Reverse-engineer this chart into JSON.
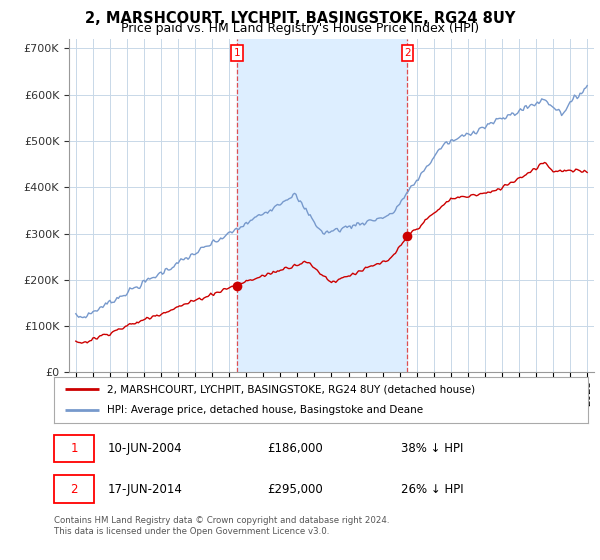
{
  "title": "2, MARSHCOURT, LYCHPIT, BASINGSTOKE, RG24 8UY",
  "subtitle": "Price paid vs. HM Land Registry's House Price Index (HPI)",
  "title_fontsize": 10.5,
  "subtitle_fontsize": 9,
  "background_color": "#ffffff",
  "plot_bg_color": "#ffffff",
  "grid_color": "#c8d8e8",
  "shade_color": "#ddeeff",
  "transaction1": {
    "date": "10-JUN-2004",
    "price": 186000,
    "pct": "38% ↓ HPI",
    "label": "1",
    "year": 2004.458
  },
  "transaction2": {
    "date": "17-JUN-2014",
    "price": 295000,
    "pct": "26% ↓ HPI",
    "label": "2",
    "year": 2014.458
  },
  "legend_label_red": "2, MARSHCOURT, LYCHPIT, BASINGSTOKE, RG24 8UY (detached house)",
  "legend_label_blue": "HPI: Average price, detached house, Basingstoke and Deane",
  "footnote": "Contains HM Land Registry data © Crown copyright and database right 2024.\nThis data is licensed under the Open Government Licence v3.0.",
  "red_color": "#cc0000",
  "blue_color": "#7799cc",
  "ylim": [
    0,
    720000
  ],
  "yticks": [
    0,
    100000,
    200000,
    300000,
    400000,
    500000,
    600000,
    700000
  ],
  "ytick_labels": [
    "£0",
    "£100K",
    "£200K",
    "£300K",
    "£400K",
    "£500K",
    "£600K",
    "£700K"
  ],
  "xlim_left": 1994.6,
  "xlim_right": 2025.4
}
